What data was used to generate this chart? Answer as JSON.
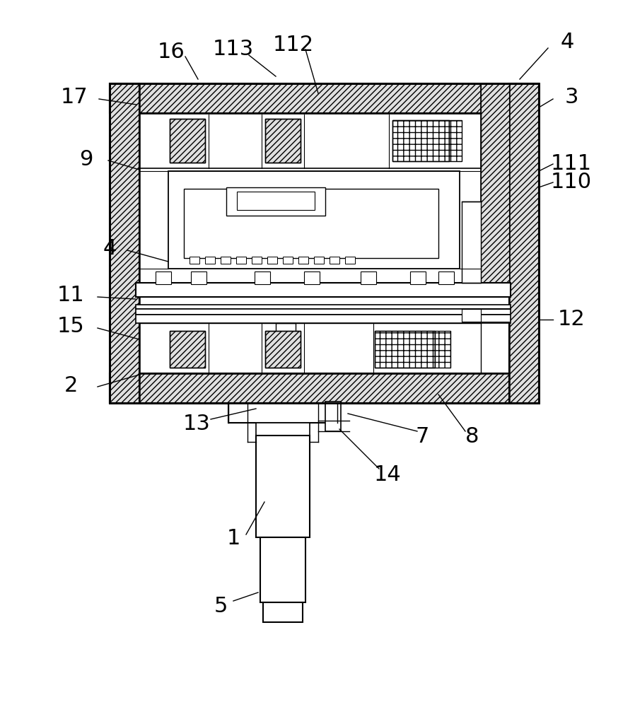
{
  "bg_color": "#ffffff",
  "figsize": [
    8.98,
    10.0
  ],
  "dpi": 100,
  "label_fontsize": 22,
  "lw_main": 1.5,
  "lw_thin": 0.8,
  "hatch_dense": "////",
  "hatch_plus": "++",
  "gray_fill": "#d8d8d8"
}
